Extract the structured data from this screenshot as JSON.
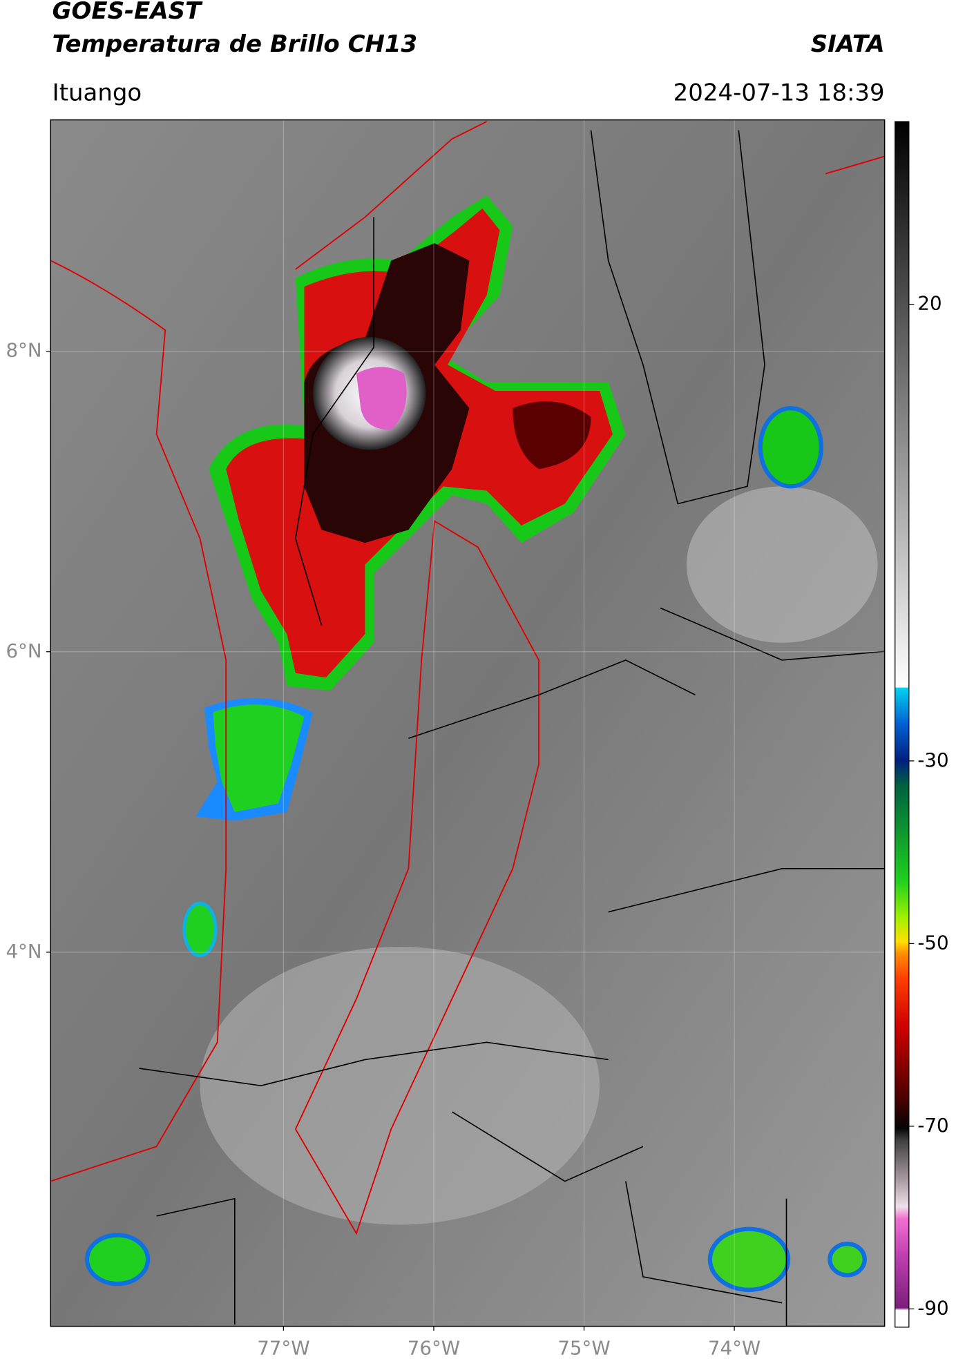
{
  "header": {
    "title": "GOES-EAST",
    "subtitle": "Temperatura de Brillo CH13",
    "brand": "SIATA",
    "location": "Ituango",
    "datetime": "2024-07-13 18:39"
  },
  "map": {
    "xlim": [
      -78.55,
      -73.0
    ],
    "ylim": [
      1.51,
      9.54
    ],
    "xticks": [
      {
        "value": -77,
        "label": "77°W"
      },
      {
        "value": -76,
        "label": "76°W"
      },
      {
        "value": -75,
        "label": "75°W"
      },
      {
        "value": -74,
        "label": "74°W"
      }
    ],
    "yticks": [
      {
        "value": 8,
        "label": "8°N"
      },
      {
        "value": 6,
        "label": "6°N"
      },
      {
        "value": 4,
        "label": "4°N"
      }
    ]
  },
  "colorbar": {
    "lim": [
      -92,
      40
    ],
    "ticks": [
      20,
      -30,
      -50,
      -70,
      -90
    ]
  }
}
